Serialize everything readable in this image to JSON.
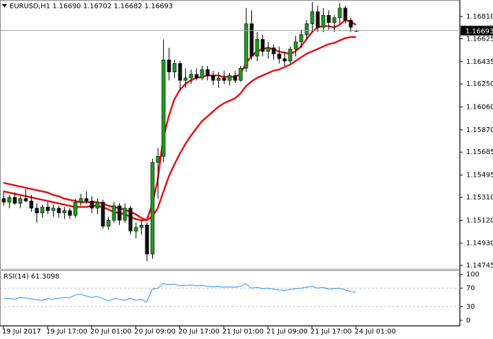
{
  "chart_data": [
    {
      "type": "candlestick",
      "title": "EURUSD,H1  1.16690 1.16702 1.16682 1.16693",
      "categories": [
        "19 Jul 2017",
        null,
        null,
        null,
        null,
        null,
        null,
        null,
        "19 Jul 17:00",
        null,
        null,
        null,
        null,
        null,
        null,
        null,
        "20 Jul 01:00",
        null,
        null,
        null,
        null,
        null,
        null,
        null,
        "20 Jul 09:00",
        null,
        null,
        null,
        null,
        null,
        null,
        null,
        "20 Jul 17:00",
        null,
        null,
        null,
        null,
        null,
        null,
        null,
        "21 Jul 01:00",
        null,
        null,
        null,
        null,
        null,
        null,
        null,
        "21 Jul 09:00",
        null,
        null,
        null,
        null,
        null,
        null,
        null,
        "21 Jul 17:00",
        null,
        null,
        null,
        null,
        null,
        null,
        null,
        "24 Jul 01:00"
      ],
      "open": [
        1.153,
        1.1527,
        1.1531,
        1.1526,
        1.153,
        1.1528,
        1.1522,
        1.1518,
        1.1523,
        1.152,
        1.1522,
        1.1518,
        1.152,
        1.1516,
        1.1527,
        1.153,
        1.1528,
        1.1522,
        1.1527,
        1.1507,
        1.1512,
        1.1524,
        1.1512,
        1.1522,
        1.1503,
        1.1506,
        1.1508,
        1.1484,
        1.156,
        1.1565,
        1.1645,
        1.1635,
        1.1642,
        1.1628,
        1.163,
        1.1633,
        1.163,
        1.1637,
        1.1632,
        1.1628,
        1.163,
        1.1628,
        1.1632,
        1.1628,
        1.1638,
        1.1675,
        1.1648,
        1.1662,
        1.1652,
        1.1655,
        1.165,
        1.1646,
        1.1644,
        1.1654,
        1.166,
        1.1666,
        1.1675,
        1.1685,
        1.1672,
        1.1682,
        1.1676,
        1.168,
        1.1688,
        1.1678,
        1.1669
      ],
      "high": [
        1.1536,
        1.1533,
        1.1535,
        1.1532,
        1.1538,
        1.1533,
        1.1526,
        1.1525,
        1.1527,
        1.1525,
        1.1524,
        1.1523,
        1.1522,
        1.153,
        1.1534,
        1.1536,
        1.1532,
        1.153,
        1.1529,
        1.1515,
        1.1527,
        1.1526,
        1.1526,
        1.1524,
        1.151,
        1.1512,
        1.151,
        1.1563,
        1.1572,
        1.1662,
        1.1655,
        1.1645,
        1.1644,
        1.1638,
        1.1637,
        1.1638,
        1.164,
        1.164,
        1.1636,
        1.1635,
        1.1636,
        1.1634,
        1.1636,
        1.164,
        1.1688,
        1.1686,
        1.1668,
        1.1666,
        1.166,
        1.1658,
        1.1656,
        1.1652,
        1.1656,
        1.1665,
        1.167,
        1.1678,
        1.1693,
        1.169,
        1.1688,
        1.1686,
        1.1682,
        1.1692,
        1.169,
        1.168,
        1.16702
      ],
      "low": [
        1.1524,
        1.1522,
        1.1525,
        1.1522,
        1.1527,
        1.1519,
        1.151,
        1.1514,
        1.1517,
        1.1515,
        1.1514,
        1.1513,
        1.1513,
        1.1514,
        1.1524,
        1.1526,
        1.1518,
        1.1517,
        1.1505,
        1.1504,
        1.151,
        1.1508,
        1.151,
        1.15,
        1.1497,
        1.15,
        1.1478,
        1.148,
        1.153,
        1.156,
        1.1628,
        1.163,
        1.162,
        1.1622,
        1.1625,
        1.1628,
        1.1628,
        1.1628,
        1.1624,
        1.1622,
        1.1625,
        1.1624,
        1.1626,
        1.1627,
        1.1635,
        1.1645,
        1.1644,
        1.1648,
        1.1646,
        1.1645,
        1.1642,
        1.164,
        1.1642,
        1.1648,
        1.1655,
        1.1662,
        1.1668,
        1.1668,
        1.1668,
        1.167,
        1.1668,
        1.1675,
        1.1675,
        1.1668,
        1.16682
      ],
      "close": [
        1.1527,
        1.1531,
        1.1526,
        1.153,
        1.1528,
        1.1522,
        1.1518,
        1.1523,
        1.152,
        1.1522,
        1.1518,
        1.152,
        1.1516,
        1.1527,
        1.153,
        1.1528,
        1.1522,
        1.1527,
        1.1507,
        1.1512,
        1.1524,
        1.1512,
        1.1522,
        1.1503,
        1.1506,
        1.1508,
        1.1484,
        1.156,
        1.1565,
        1.1645,
        1.1635,
        1.1642,
        1.1628,
        1.163,
        1.1633,
        1.163,
        1.1637,
        1.1632,
        1.1628,
        1.163,
        1.1628,
        1.1632,
        1.1628,
        1.1638,
        1.1675,
        1.1648,
        1.1662,
        1.1652,
        1.1655,
        1.165,
        1.1646,
        1.1644,
        1.1654,
        1.166,
        1.1666,
        1.1675,
        1.1685,
        1.1672,
        1.1682,
        1.1676,
        1.168,
        1.1688,
        1.1678,
        1.1672,
        1.16693
      ],
      "up_color": "#1f9a1f",
      "down_color": "#111111",
      "series": [
        {
          "color": "#e41010",
          "values": [
            1.1543,
            1.1542,
            1.1541,
            1.154,
            1.1539,
            1.1538,
            1.1537,
            1.1536,
            1.1535,
            1.1533,
            1.1532,
            1.153,
            1.1529,
            1.1528,
            1.1527,
            1.1527,
            1.1527,
            1.1527,
            1.1526,
            1.1524,
            1.1523,
            1.1522,
            1.1521,
            1.1519,
            1.1517,
            1.1514,
            1.1512,
            1.1525,
            1.1545,
            1.158,
            1.1598,
            1.1612,
            1.162,
            1.1625,
            1.1628,
            1.163,
            1.1631,
            1.1632,
            1.1632,
            1.1632,
            1.1631,
            1.1631,
            1.1631,
            1.1633,
            1.1642,
            1.1648,
            1.1652,
            1.1654,
            1.1655,
            1.1654,
            1.1652,
            1.1651,
            1.165,
            1.1652,
            1.1656,
            1.1662,
            1.1668,
            1.1672,
            1.1673,
            1.1673,
            1.1672,
            1.1674,
            1.1678,
            1.1677,
            1.1674
          ]
        },
        {
          "color": "#e41010",
          "values": [
            1.1536,
            1.1535,
            1.1534,
            1.1533,
            1.1532,
            1.1531,
            1.153,
            1.1529,
            1.1528,
            1.1527,
            1.1526,
            1.1525,
            1.1524,
            1.1523,
            1.1523,
            1.1523,
            1.1524,
            1.1524,
            1.1523,
            1.1521,
            1.1519,
            1.1518,
            1.1517,
            1.1515,
            1.1513,
            1.1512,
            1.1512,
            1.1515,
            1.1522,
            1.1535,
            1.1548,
            1.1558,
            1.1567,
            1.1575,
            1.1582,
            1.1588,
            1.1594,
            1.1598,
            1.1602,
            1.1606,
            1.1609,
            1.1611,
            1.1613,
            1.1617,
            1.1623,
            1.1627,
            1.163,
            1.1632,
            1.1634,
            1.1636,
            1.1637,
            1.1639,
            1.1641,
            1.1644,
            1.1647,
            1.165,
            1.1652,
            1.1654,
            1.1656,
            1.1658,
            1.1659,
            1.1661,
            1.1663,
            1.1664,
            1.1664
          ]
        }
      ],
      "last_price": 1.16693,
      "ylim": [
        1.14711,
        1.16947
      ],
      "yticks": [
        {
          "value": 1.1681,
          "label": "1.16810"
        },
        1.16625,
        1.16435,
        {
          "value": 1.1625,
          "label": "1.16250"
        },
        {
          "value": 1.1606,
          "label": "1.16060"
        },
        {
          "value": 1.1587,
          "label": "1.15870"
        },
        1.15685,
        1.15495,
        {
          "value": 1.1531,
          "label": "1.15310"
        },
        {
          "value": 1.1512,
          "label": "1.15120"
        },
        {
          "value": 1.1493,
          "label": "1.14930"
        },
        1.14745
      ]
    },
    {
      "type": "line",
      "title": "RSI(14) 61.3098",
      "color": "#1e90ff",
      "values": [
        48,
        47,
        46,
        50,
        49,
        47,
        45,
        44,
        47,
        46,
        48,
        50,
        49,
        55,
        57,
        53,
        50,
        52,
        48,
        42,
        47,
        46,
        44,
        48,
        44,
        46,
        40,
        68,
        70,
        80,
        78,
        79,
        75,
        76,
        77,
        75,
        76,
        74,
        73,
        74,
        72,
        73,
        72,
        74,
        80,
        70,
        72,
        69,
        70,
        68,
        66,
        65,
        67,
        69,
        70,
        72,
        74,
        70,
        72,
        68,
        69,
        70,
        66,
        63,
        61.3098
      ],
      "ylim": [
        -12,
        109
      ],
      "yticks": [
        0,
        30,
        70,
        100
      ]
    }
  ]
}
